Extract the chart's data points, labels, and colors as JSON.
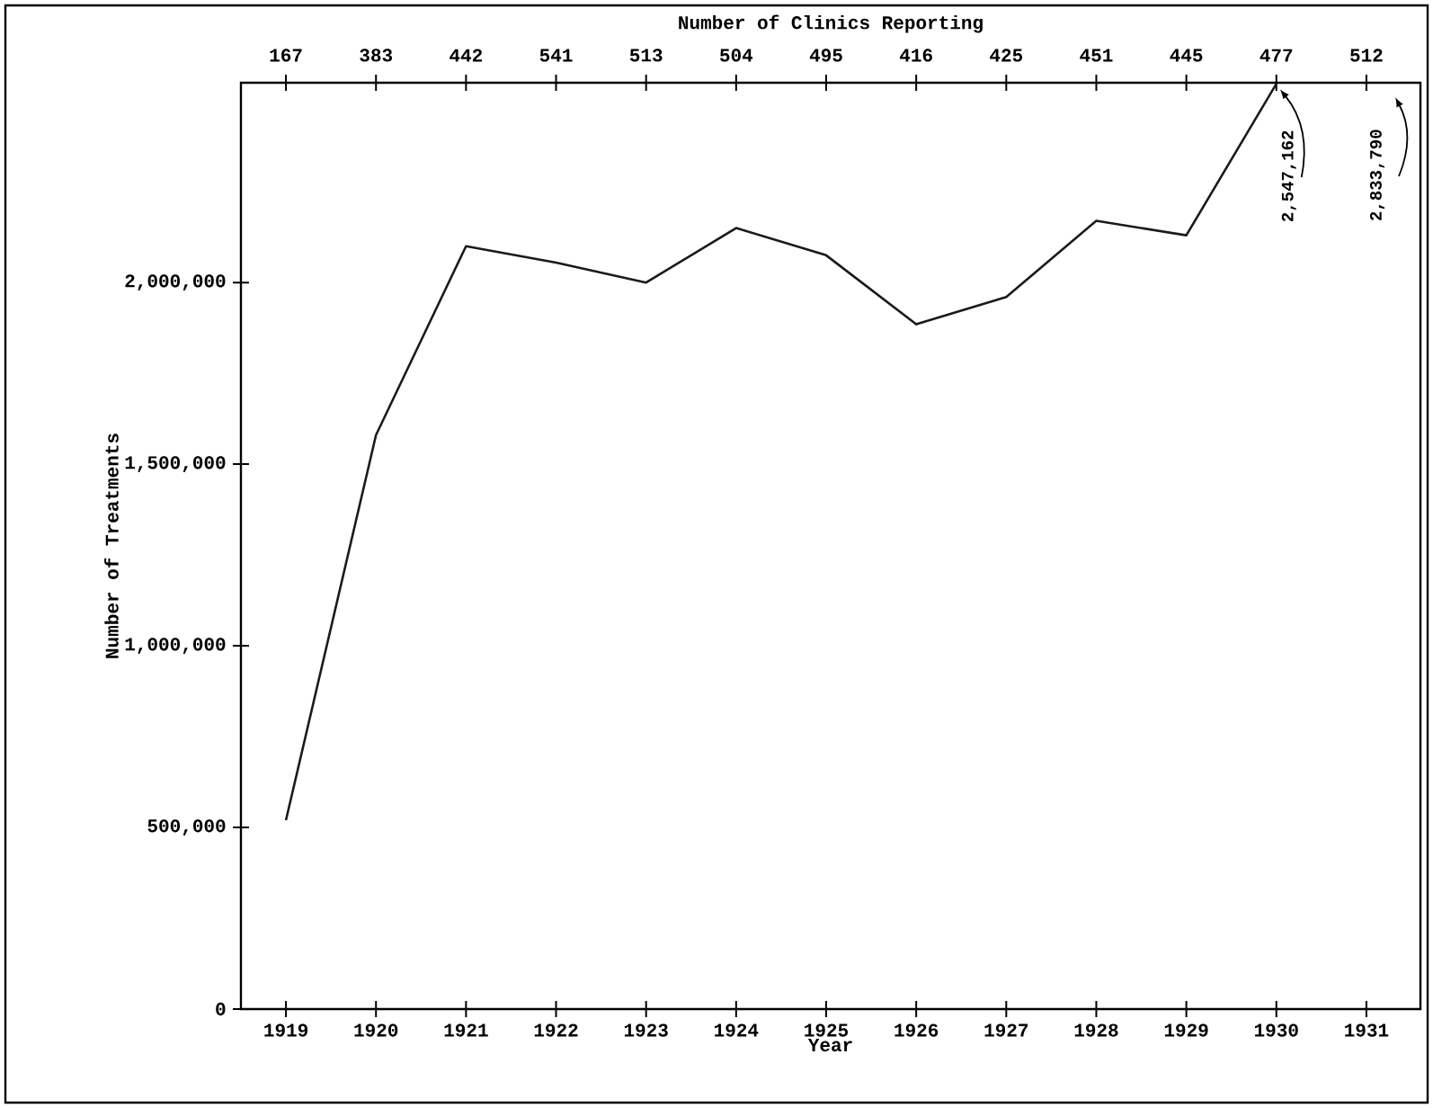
{
  "chart_data": {
    "type": "line",
    "xlabel": "Year",
    "ylabel": "Number of Treatments",
    "x2label": "Number of Clinics Reporting",
    "x": [
      1919,
      1920,
      1921,
      1922,
      1923,
      1924,
      1925,
      1926,
      1927,
      1928,
      1929,
      1930
    ],
    "series": [
      {
        "color": "#1a1a1a",
        "values": [
          520000,
          1580000,
          2100000,
          2055000,
          2000000,
          2150000,
          2075000,
          1885000,
          1960000,
          2170000,
          2130000,
          2547162
        ]
      }
    ],
    "xlim": [
      1918.5,
      1931.6
    ],
    "xticks": [
      1919,
      1920,
      1921,
      1922,
      1923,
      1924,
      1925,
      1926,
      1927,
      1928,
      1929,
      1930,
      1931
    ],
    "ylim": [
      0,
      2550000
    ],
    "yticks": [
      0,
      {
        "value": 500000,
        "label": "500,000"
      },
      {
        "value": 1000000,
        "label": "1,000,000"
      },
      {
        "value": 1500000,
        "label": "1,500,000"
      },
      {
        "value": 2000000,
        "label": "2,000,000"
      }
    ],
    "annotations": [
      {
        "text": "2,547,162",
        "x": 1930,
        "y": 2547162
      },
      "167",
      "383",
      "442",
      "541",
      "513",
      "504",
      "495",
      "416",
      "425",
      "451",
      "445",
      "477",
      "512",
      "2,833,790"
    ],
    "grid": false,
    "marker": "none",
    "line_style": "solid"
  }
}
